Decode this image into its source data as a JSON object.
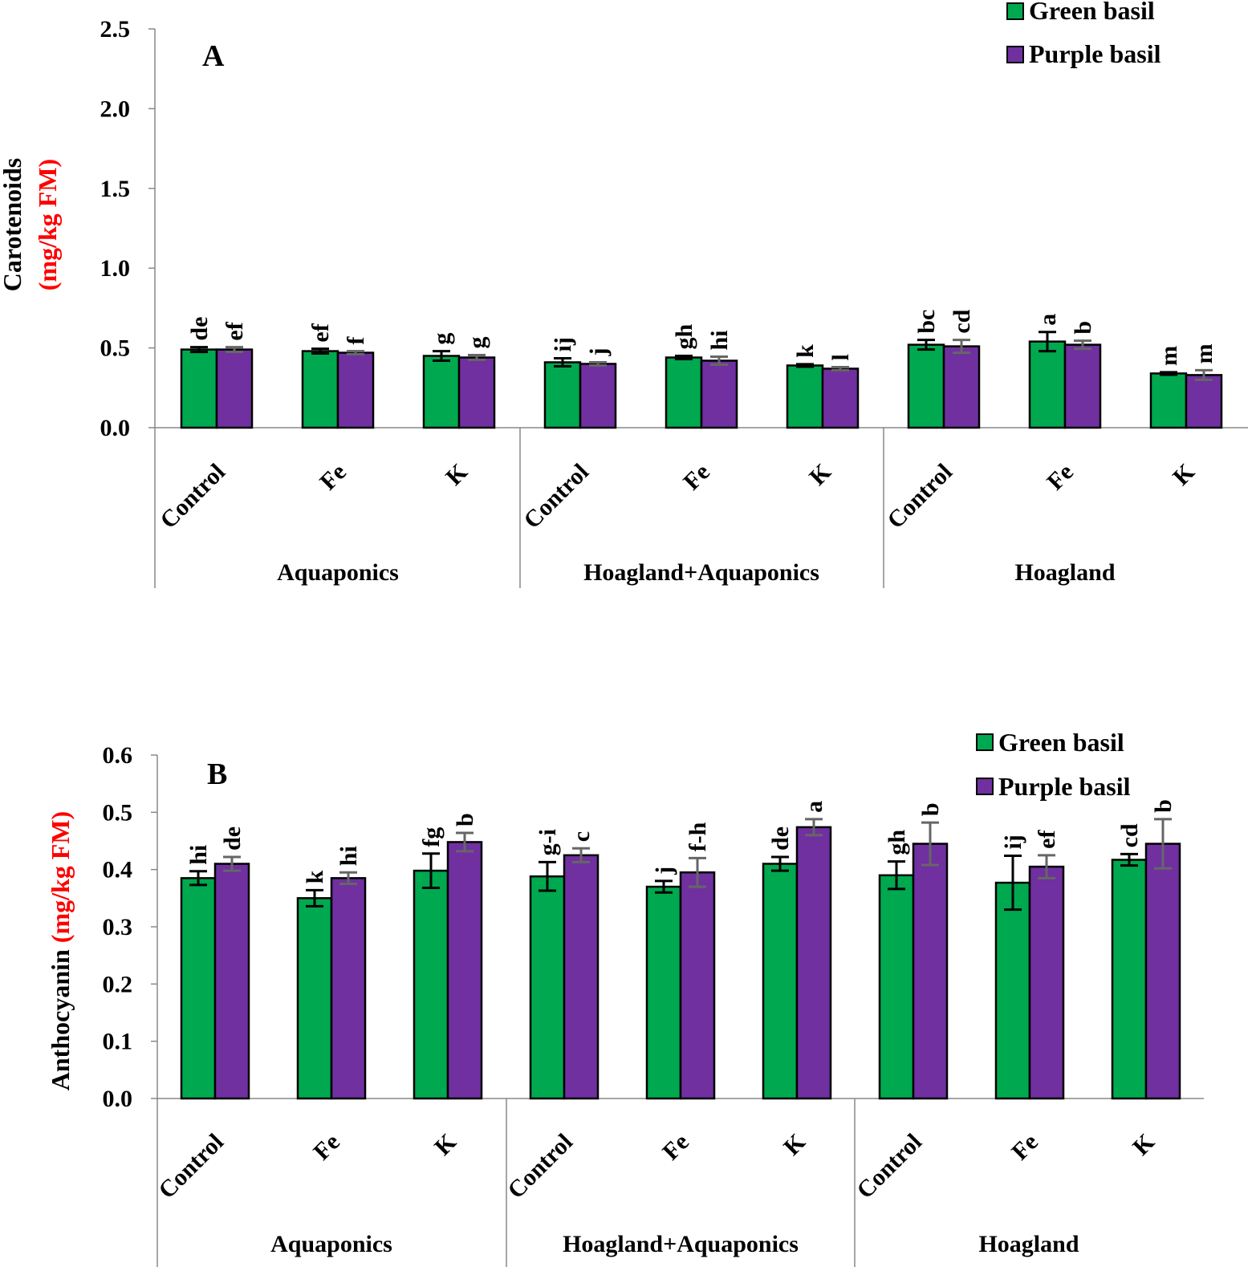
{
  "colors": {
    "green": "#00a94f",
    "purple": "#7030a0",
    "unit_red": "#ff0000"
  },
  "chart_data": [
    {
      "type": "bar",
      "panel_label": "A",
      "ylabel_main": "Carotenoids",
      "ylabel_unit": "(mg/kg FM)",
      "ylim": [
        0,
        2.5
      ],
      "ticks": [
        "0.0",
        "0.5",
        "1.0",
        "1.5",
        "2.0",
        "2.5"
      ],
      "tick_values": [
        0,
        0.5,
        1.0,
        1.5,
        2.0,
        2.5
      ],
      "groups": [
        "Aquaponics",
        "Hoagland+Aquaponics",
        "Hoagland"
      ],
      "categories": [
        "Control",
        "Fe",
        "K",
        "Control",
        "Fe",
        "K",
        "Control",
        "Fe",
        "K"
      ],
      "legend": [
        "Green basil",
        "Purple basil"
      ],
      "series": [
        {
          "name": "Green basil",
          "values": [
            0.49,
            0.48,
            0.45,
            0.41,
            0.44,
            0.39,
            0.52,
            0.54,
            0.34
          ],
          "errors": [
            0.015,
            0.015,
            0.03,
            0.025,
            0.01,
            0.008,
            0.03,
            0.06,
            0.008
          ],
          "letters": [
            "de",
            "ef",
            "g",
            "ij",
            "gh",
            "k",
            "bc",
            "a",
            "m"
          ]
        },
        {
          "name": "Purple basil",
          "values": [
            0.49,
            0.47,
            0.44,
            0.4,
            0.42,
            0.37,
            0.51,
            0.52,
            0.33
          ],
          "errors": [
            0.015,
            0.01,
            0.015,
            0.01,
            0.025,
            0.01,
            0.04,
            0.025,
            0.03
          ],
          "letters": [
            "ef",
            "f",
            "g",
            "j",
            "hi",
            "l",
            "cd",
            "b",
            "m"
          ]
        }
      ]
    },
    {
      "type": "bar",
      "panel_label": "B",
      "ylabel_main": "Anthocyanin",
      "ylabel_unit": "(mg/kg FM)",
      "ylim": [
        0,
        0.6
      ],
      "ticks": [
        "0.0",
        "0.1",
        "0.2",
        "0.3",
        "0.4",
        "0.5",
        "0.6"
      ],
      "tick_values": [
        0,
        0.1,
        0.2,
        0.3,
        0.4,
        0.5,
        0.6
      ],
      "groups": [
        "Aquaponics",
        "Hoagland+Aquaponics",
        "Hoagland"
      ],
      "categories": [
        "Control",
        "Fe",
        "K",
        "Control",
        "Fe",
        "K",
        "Control",
        "Fe",
        "K"
      ],
      "legend": [
        "Green basil",
        "Purple basil"
      ],
      "series": [
        {
          "name": "Green basil",
          "values": [
            0.385,
            0.35,
            0.398,
            0.388,
            0.37,
            0.41,
            0.39,
            0.377,
            0.417
          ],
          "errors": [
            0.012,
            0.014,
            0.03,
            0.025,
            0.01,
            0.012,
            0.024,
            0.047,
            0.01
          ],
          "letters": [
            "hi",
            "k",
            "fg",
            "g-i",
            "j",
            "de",
            "gh",
            "ij",
            "cd"
          ]
        },
        {
          "name": "Purple basil",
          "values": [
            0.41,
            0.385,
            0.448,
            0.425,
            0.395,
            0.474,
            0.445,
            0.405,
            0.445
          ],
          "errors": [
            0.012,
            0.01,
            0.016,
            0.012,
            0.025,
            0.014,
            0.037,
            0.02,
            0.043
          ],
          "letters": [
            "de",
            "hi",
            "b",
            "c",
            "f-h",
            "a",
            "b",
            "ef",
            "b"
          ]
        }
      ]
    }
  ]
}
